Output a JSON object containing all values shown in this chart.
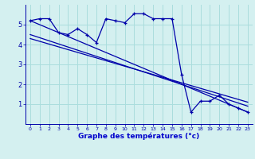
{
  "bg_color": "#d4f0f0",
  "grid_color": "#aadddd",
  "line_color": "#0000aa",
  "xlabel": "Graphe des températures (°c)",
  "xlabel_color": "#0000cc",
  "tick_color": "#0000aa",
  "xlim": [
    -0.5,
    23.5
  ],
  "ylim": [
    0,
    6
  ],
  "yticks": [
    1,
    2,
    3,
    4,
    5
  ],
  "xticks": [
    0,
    1,
    2,
    3,
    4,
    5,
    6,
    7,
    8,
    9,
    10,
    11,
    12,
    13,
    14,
    15,
    16,
    17,
    18,
    19,
    20,
    21,
    22,
    23
  ],
  "series1_x": [
    0,
    1,
    2,
    3,
    4,
    5,
    6,
    7,
    8,
    9,
    10,
    11,
    12,
    13,
    14,
    15,
    16,
    17,
    18,
    19,
    20,
    21,
    22,
    23
  ],
  "series1_y": [
    5.2,
    5.3,
    5.3,
    4.6,
    4.5,
    4.8,
    4.5,
    4.1,
    5.3,
    5.2,
    5.1,
    5.55,
    5.55,
    5.3,
    5.3,
    5.3,
    2.5,
    0.6,
    1.15,
    1.15,
    1.45,
    1.0,
    0.8,
    0.6
  ],
  "series2_x": [
    0,
    23
  ],
  "series2_y": [
    5.2,
    0.6
  ],
  "series3_x": [
    0,
    23
  ],
  "series3_y": [
    4.5,
    0.9
  ],
  "series4_x": [
    0,
    23
  ],
  "series4_y": [
    4.3,
    1.1
  ]
}
